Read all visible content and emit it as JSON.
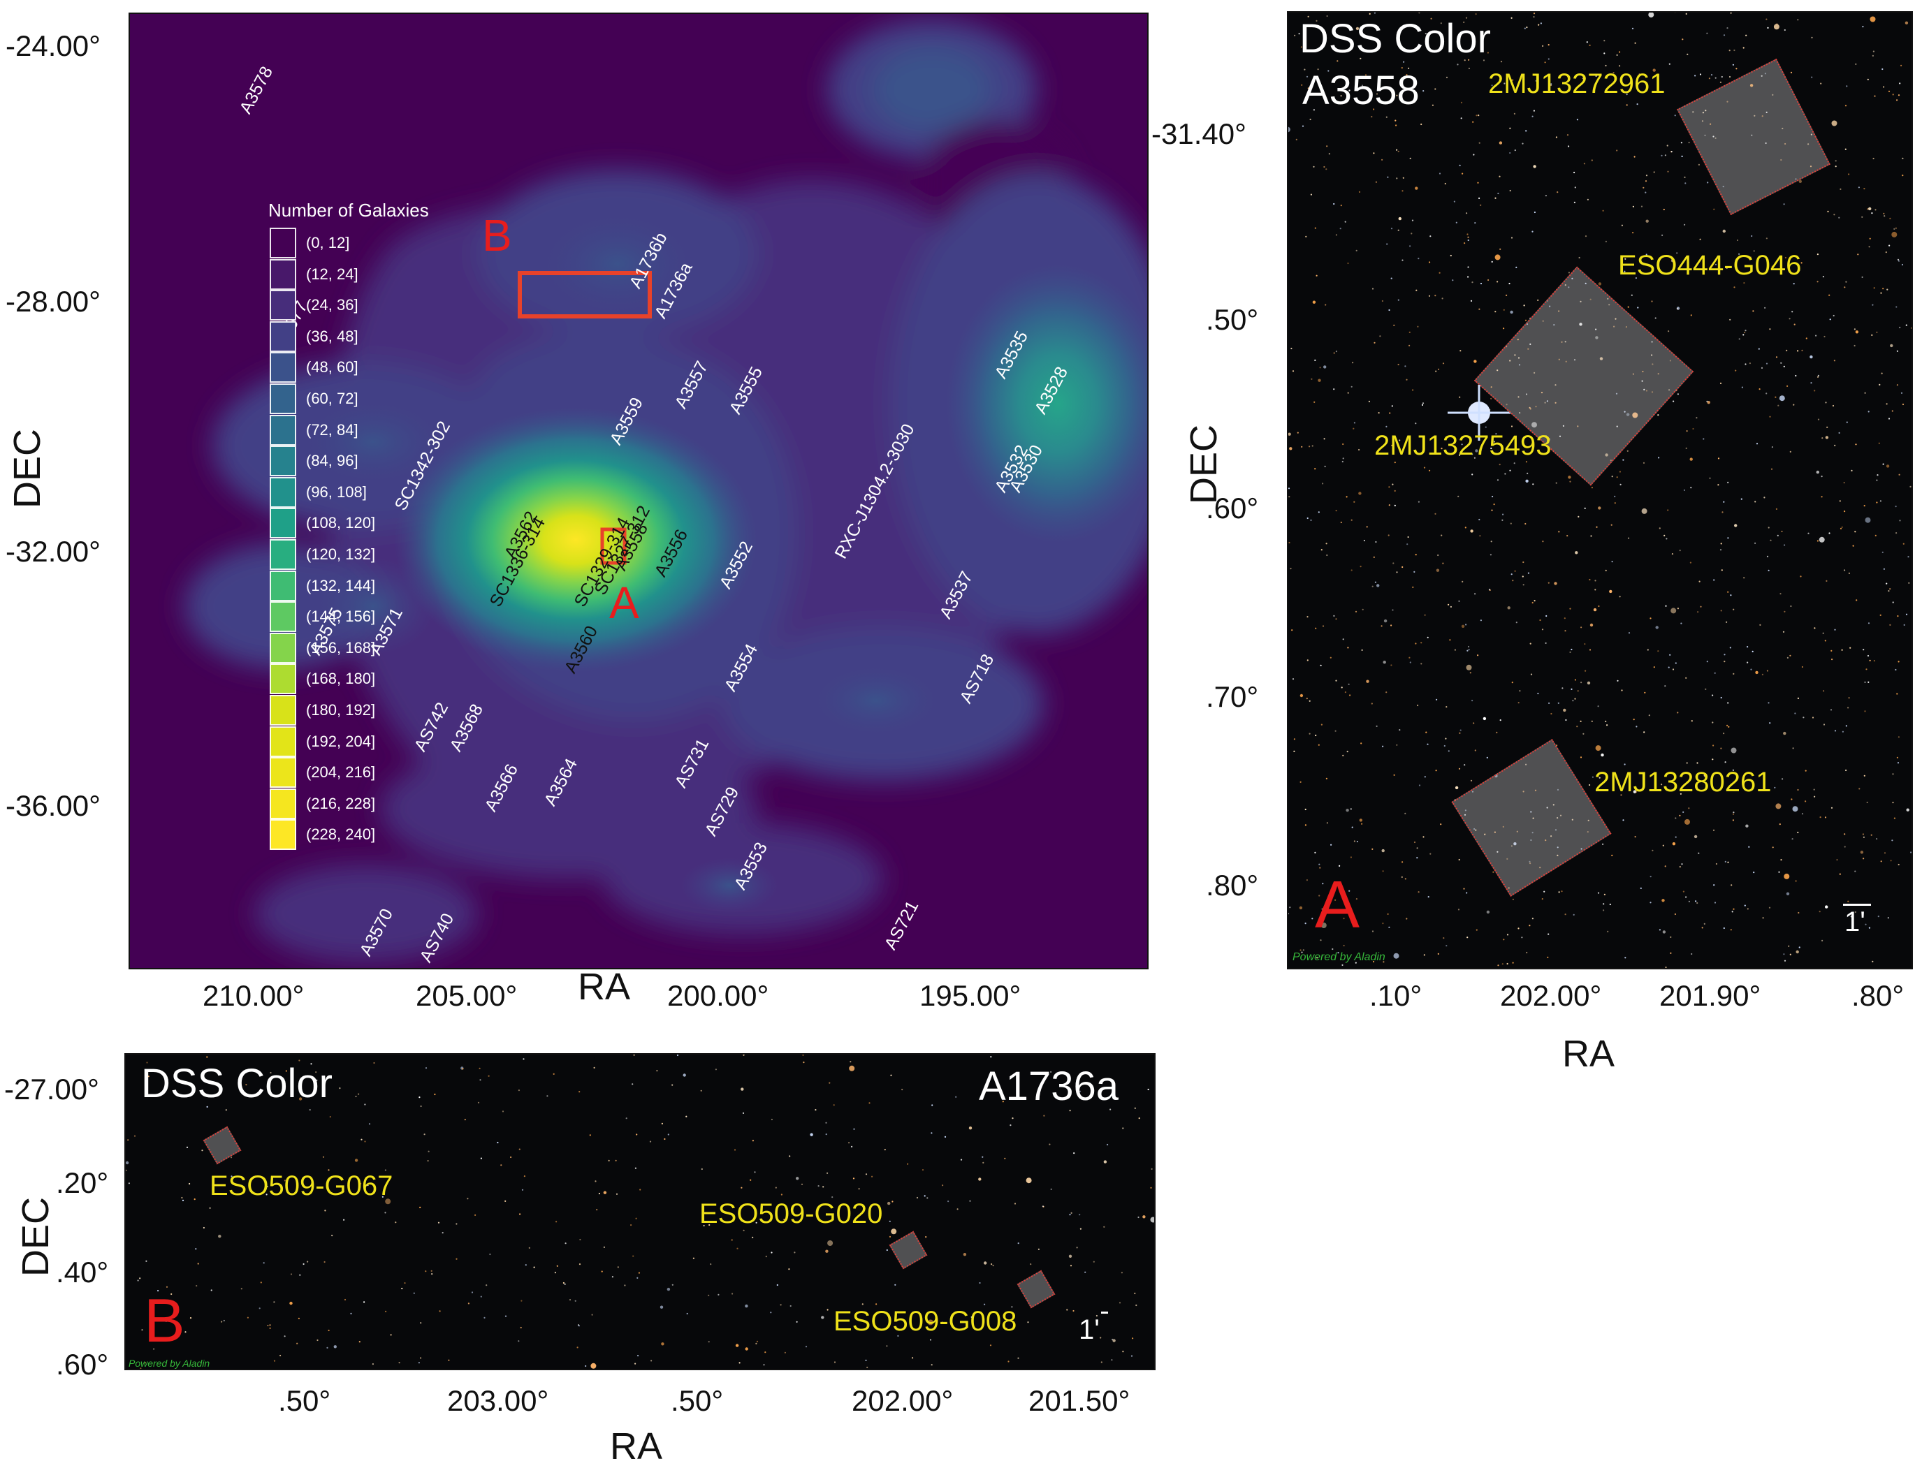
{
  "panel_main": {
    "ra_ticks": [
      "210.00°",
      "205.00°",
      "200.00°",
      "195.00°"
    ],
    "dec_ticks": [
      "-24.00°",
      "-28.00°",
      "-32.00°",
      "-36.00°"
    ],
    "xlabel": "RA",
    "ylabel": "DEC",
    "legend_title": "Number of Galaxies",
    "legend_bins": [
      "(0, 12]",
      "(12, 24]",
      "(24, 36]",
      "(36, 48]",
      "(48, 60]",
      "(60, 72]",
      "(72, 84]",
      "(84, 96]",
      "(96, 108]",
      "(108, 120]",
      "(120, 132]",
      "(132, 144]",
      "(144, 156]",
      "(156, 168]",
      "(168, 180]",
      "(180, 192]",
      "(192, 204]",
      "(204, 216]",
      "(216, 228]",
      "(228, 240]"
    ],
    "legend_colors": [
      "#440154",
      "#48186a",
      "#472d7b",
      "#424086",
      "#3b528b",
      "#33638d",
      "#2c728e",
      "#26828e",
      "#21918c",
      "#1fa088",
      "#28ae80",
      "#3fbc73",
      "#5ec962",
      "#84d44b",
      "#addc30",
      "#d8e219",
      "#e2e418",
      "#ece51b",
      "#f5e61f",
      "#fde725"
    ],
    "markers": {
      "a": "A",
      "b": "B"
    },
    "clusters": [
      {
        "name": "A3578",
        "ra": 209.5,
        "dec": -24.4,
        "dark": false
      },
      {
        "name": "A3577",
        "ra": 208.8,
        "dec": -28.3,
        "dark": false
      },
      {
        "name": "A1736b",
        "ra": 201.7,
        "dec": -27.3,
        "dark": false
      },
      {
        "name": "A1736a",
        "ra": 201.2,
        "dec": -27.8,
        "dark": false
      },
      {
        "name": "A3557",
        "ra": 200.8,
        "dec": -29.3,
        "dark": false
      },
      {
        "name": "A3555",
        "ra": 199.7,
        "dec": -29.4,
        "dark": false
      },
      {
        "name": "A3559",
        "ra": 202.1,
        "dec": -29.9,
        "dark": false
      },
      {
        "name": "A3535",
        "ra": 194.4,
        "dec": -28.8,
        "dark": false
      },
      {
        "name": "A3528",
        "ra": 193.6,
        "dec": -29.4,
        "dark": false
      },
      {
        "name": "SC1342-302",
        "ra": 206.4,
        "dec": -31.0,
        "dark": false
      },
      {
        "name": "RXC-J1304.2-3030",
        "ra": 197.6,
        "dec": -31.8,
        "dark": false
      },
      {
        "name": "A3532",
        "ra": 194.4,
        "dec": -30.7,
        "dark": false
      },
      {
        "name": "A3530",
        "ra": 194.1,
        "dec": -30.7,
        "dark": false
      },
      {
        "name": "SC1336-314",
        "ra": 204.5,
        "dec": -32.6,
        "dark": true
      },
      {
        "name": "A3562",
        "ra": 204.2,
        "dec": -31.8,
        "dark": true
      },
      {
        "name": "SC1329-314",
        "ra": 202.8,
        "dec": -32.6,
        "dark": true
      },
      {
        "name": "SC1327-312",
        "ra": 202.4,
        "dec": -32.4,
        "dark": true
      },
      {
        "name": "A3558",
        "ra": 202.0,
        "dec": -32.0,
        "dark": true
      },
      {
        "name": "A3556",
        "ra": 201.2,
        "dec": -32.1,
        "dark": true
      },
      {
        "name": "A3552",
        "ra": 199.9,
        "dec": -32.3,
        "dark": false
      },
      {
        "name": "A3575",
        "ra": 208.1,
        "dec": -33.4,
        "dark": false
      },
      {
        "name": "A3571",
        "ra": 206.9,
        "dec": -33.4,
        "dark": false
      },
      {
        "name": "A3560",
        "ra": 203.0,
        "dec": -33.7,
        "dark": true
      },
      {
        "name": "A3537",
        "ra": 195.5,
        "dec": -32.8,
        "dark": false
      },
      {
        "name": "A3554",
        "ra": 199.8,
        "dec": -34.0,
        "dark": false
      },
      {
        "name": "AS718",
        "ra": 195.1,
        "dec": -34.2,
        "dark": false
      },
      {
        "name": "AS742",
        "ra": 206.0,
        "dec": -35.0,
        "dark": false
      },
      {
        "name": "A3568",
        "ra": 205.3,
        "dec": -35.0,
        "dark": false
      },
      {
        "name": "AS731",
        "ra": 200.8,
        "dec": -35.6,
        "dark": false
      },
      {
        "name": "A3566",
        "ra": 204.6,
        "dec": -36.0,
        "dark": false
      },
      {
        "name": "A3564",
        "ra": 203.4,
        "dec": -35.9,
        "dark": false
      },
      {
        "name": "AS729",
        "ra": 200.2,
        "dec": -36.4,
        "dark": false
      },
      {
        "name": "A3553",
        "ra": 199.6,
        "dec": -37.3,
        "dark": false
      },
      {
        "name": "AS721",
        "ra": 196.6,
        "dec": -38.3,
        "dark": false
      },
      {
        "name": "A3570",
        "ra": 207.1,
        "dec": -38.4,
        "dark": false
      },
      {
        "name": "AS740",
        "ra": 205.9,
        "dec": -38.5,
        "dark": false
      }
    ]
  },
  "panel_a": {
    "title_line1": "DSS Color",
    "title_line2": "A3558",
    "letter": "A",
    "ra_ticks": [
      ".10°",
      "202.00°",
      "201.90°",
      ".80°"
    ],
    "dec_ticks": [
      "-31.40°",
      ".50°",
      ".60°",
      ".70°",
      ".80°"
    ],
    "xlabel": "RA",
    "ylabel": "DEC",
    "galaxies": [
      "2MJ13272961",
      "ESO444-G046",
      "2MJ13275493",
      "2MJ13280261"
    ],
    "scale": "1'",
    "credit": "Powered by Aladin"
  },
  "panel_b": {
    "title_left": "DSS Color",
    "title_right": "A1736a",
    "letter": "B",
    "ra_ticks": [
      ".50°",
      "203.00°",
      ".50°",
      "202.00°",
      "201.50°"
    ],
    "dec_ticks": [
      "-27.00°",
      ".20°",
      ".40°",
      ".60°"
    ],
    "xlabel": "RA",
    "ylabel": "DEC",
    "galaxies": [
      "ESO509-G067",
      "ESO509-G020",
      "ESO509-G008"
    ],
    "scale": "1'",
    "credit": "Powered by Aladin"
  }
}
